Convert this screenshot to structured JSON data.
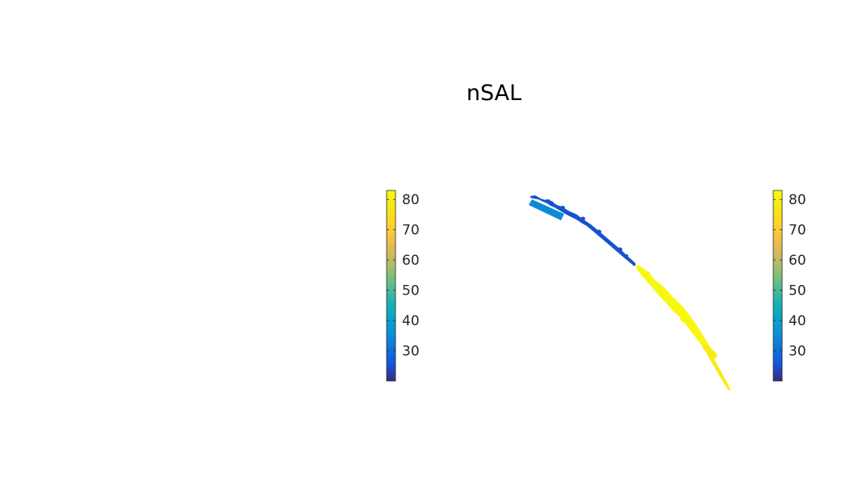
{
  "figure": {
    "title": "nSAL"
  },
  "colors": {
    "background": "#ffffff",
    "tick_text": "#262626",
    "colormap": "parula"
  },
  "chart_data": [
    {
      "type": "colorbar",
      "name": "left-colorbar",
      "range": [
        20,
        83
      ],
      "ticks": [
        "30",
        "40",
        "50",
        "60",
        "70",
        "80"
      ],
      "tick_values": [
        30,
        40,
        50,
        60,
        70,
        80
      ]
    },
    {
      "type": "scatter",
      "name": "nSAL-map",
      "title": "nSAL",
      "colormap": "parula",
      "clim": [
        20,
        83
      ],
      "grid": false,
      "axes_visible": false,
      "colorbar": {
        "range": [
          20,
          83
        ],
        "ticks": [
          "30",
          "40",
          "50",
          "60",
          "70",
          "80"
        ],
        "tick_values": [
          30,
          40,
          50,
          60,
          70,
          80
        ]
      },
      "segments": [
        {
          "name": "northwest-section",
          "value": 25
        },
        {
          "name": "offshore-block",
          "value": 35
        },
        {
          "name": "southeast-section",
          "value": 82
        },
        {
          "name": "southern-tip",
          "value": 79
        }
      ]
    }
  ]
}
